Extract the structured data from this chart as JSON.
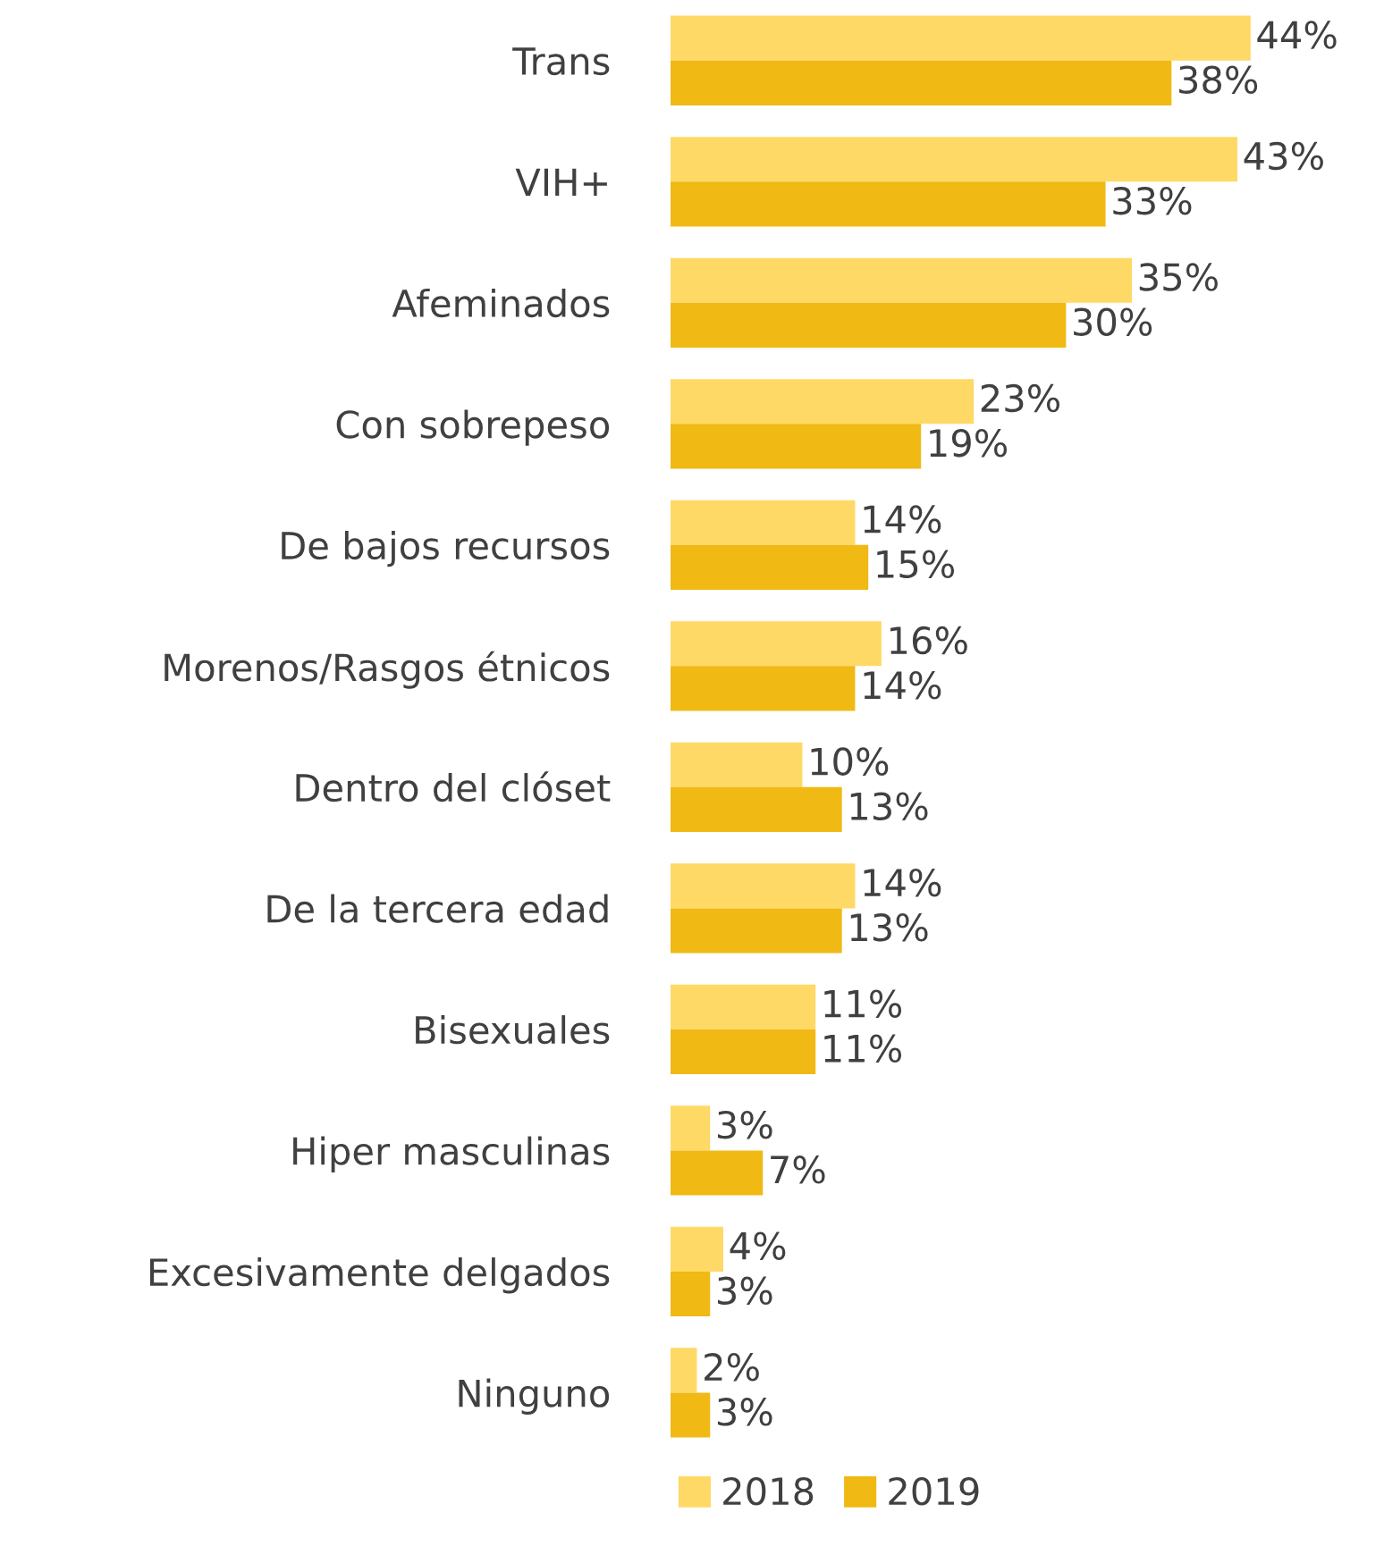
{
  "chart_data": {
    "type": "bar",
    "orientation": "horizontal",
    "categories": [
      "Trans",
      "VIH+",
      "Afeminados",
      "Con sobrepeso",
      "De bajos recursos",
      "Morenos/Rasgos étnicos",
      "Dentro del clóset",
      "De la tercera edad",
      "Bisexuales",
      "Hiper masculinas",
      "Excesivamente delgados",
      "Ninguno"
    ],
    "series": [
      {
        "name": "2018",
        "color": "#ffd966",
        "values": [
          44,
          43,
          35,
          23,
          14,
          16,
          10,
          14,
          11,
          3,
          4,
          2
        ],
        "value_labels": [
          "44%",
          "43%",
          "35%",
          "23%",
          "14%",
          "16%",
          "10%",
          "14%",
          "11%",
          "3%",
          "4%",
          "2%"
        ]
      },
      {
        "name": "2019",
        "color": "#f0b913",
        "values": [
          38,
          33,
          30,
          19,
          15,
          14,
          13,
          13,
          11,
          7,
          3,
          3
        ],
        "value_labels": [
          "38%",
          "33%",
          "30%",
          "19%",
          "15%",
          "14%",
          "13%",
          "13%",
          "11%",
          "7%",
          "3%",
          "3%"
        ]
      }
    ],
    "legend": "bottom",
    "grid": false
  }
}
